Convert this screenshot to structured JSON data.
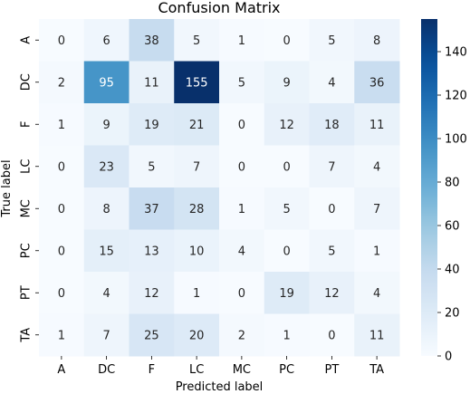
{
  "chart_data": {
    "type": "heatmap",
    "title": "Confusion Matrix",
    "xlabel": "Predicted label",
    "ylabel": "True label",
    "x_categories": [
      "A",
      "DC",
      "F",
      "LC",
      "MC",
      "PC",
      "PT",
      "TA"
    ],
    "y_categories": [
      "A",
      "DC",
      "F",
      "LC",
      "MC",
      "PC",
      "PT",
      "TA"
    ],
    "values": [
      [
        0,
        6,
        38,
        5,
        1,
        0,
        5,
        8
      ],
      [
        2,
        95,
        11,
        155,
        5,
        9,
        4,
        36
      ],
      [
        1,
        9,
        19,
        21,
        0,
        12,
        18,
        11
      ],
      [
        0,
        23,
        5,
        7,
        0,
        0,
        7,
        4
      ],
      [
        0,
        8,
        37,
        28,
        1,
        5,
        0,
        7
      ],
      [
        0,
        15,
        13,
        10,
        4,
        0,
        5,
        1
      ],
      [
        0,
        4,
        12,
        1,
        0,
        19,
        12,
        4
      ],
      [
        1,
        7,
        25,
        20,
        2,
        1,
        0,
        11
      ]
    ],
    "colormap": "Blues",
    "vmin": 0,
    "vmax": 155,
    "colorbar_ticks": [
      0,
      20,
      40,
      60,
      80,
      100,
      120,
      140
    ]
  }
}
